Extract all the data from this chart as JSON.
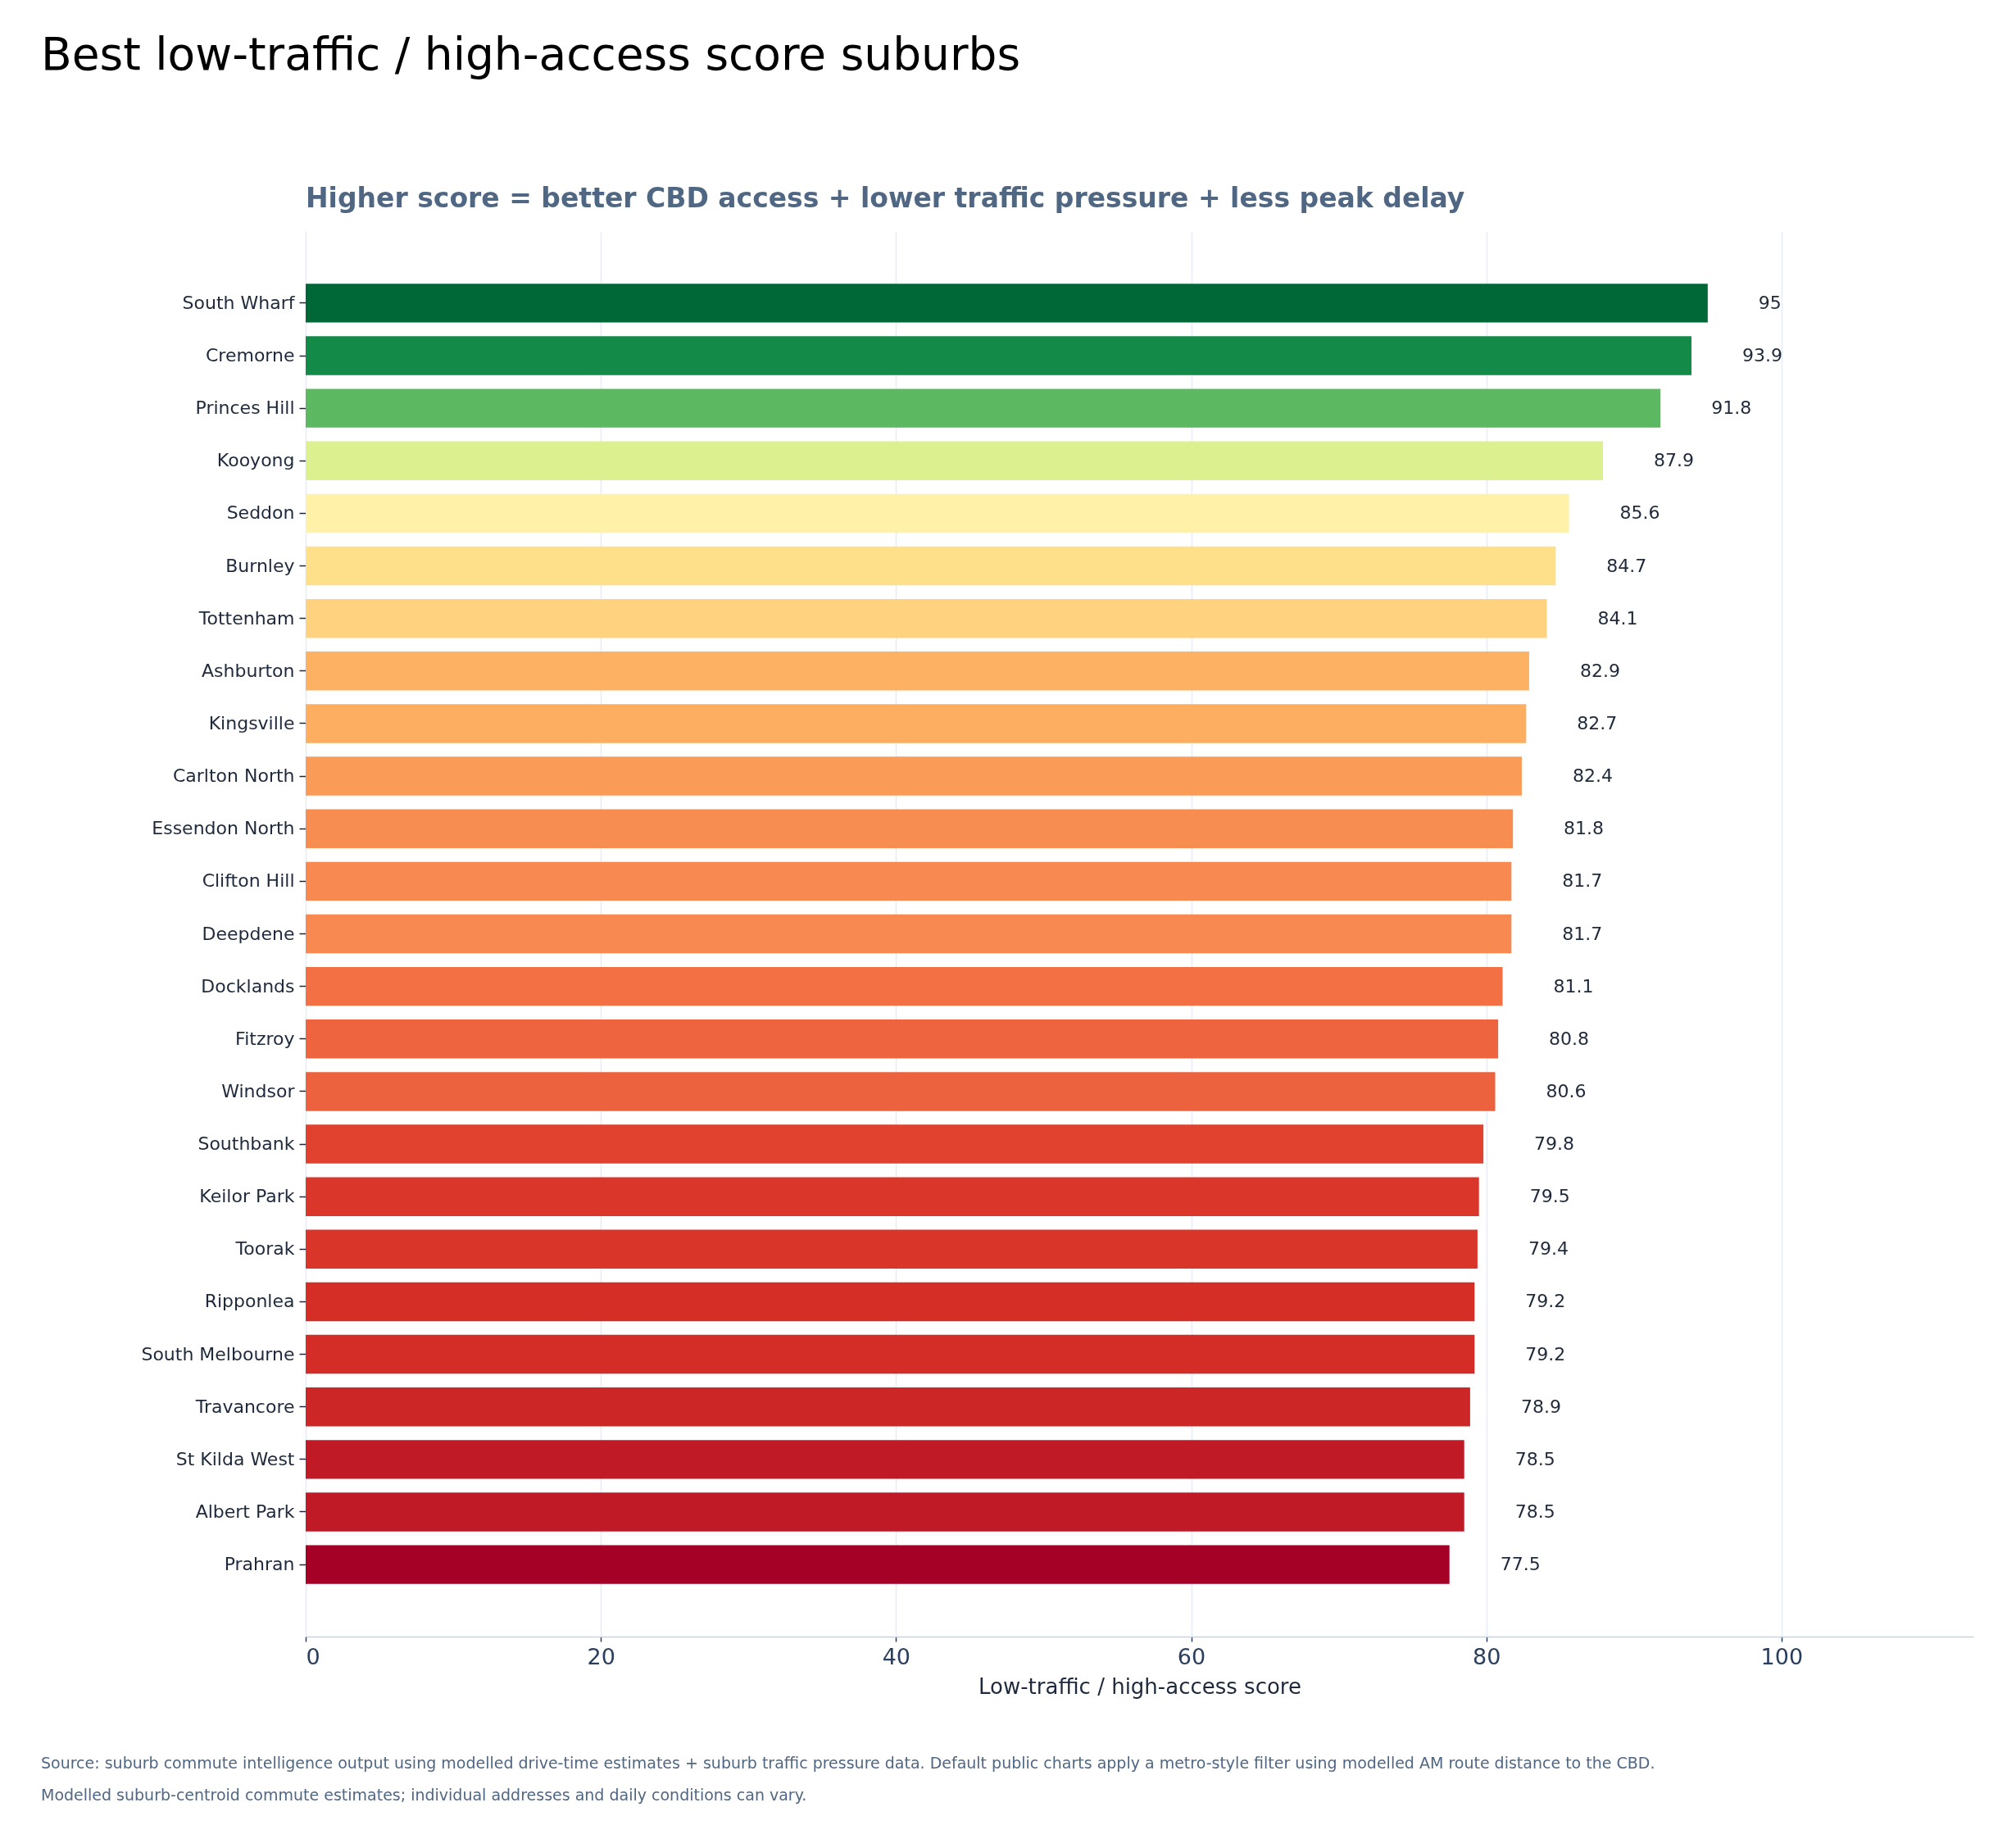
{
  "chart_data": {
    "type": "bar",
    "orientation": "horizontal",
    "title": "Best low-traffic / high-access score suburbs",
    "subtitle": "Higher score = better CBD access + lower traffic pressure + less peak delay",
    "xlabel": "Low-traffic / high-access score",
    "categories": [
      "South Wharf",
      "Cremorne",
      "Princes Hill",
      "Kooyong",
      "Seddon",
      "Burnley",
      "Tottenham",
      "Ashburton",
      "Kingsville",
      "Carlton North",
      "Essendon North",
      "Clifton Hill",
      "Deepdene",
      "Docklands",
      "Fitzroy",
      "Windsor",
      "Southbank",
      "Keilor Park",
      "Toorak",
      "Ripponlea",
      "South Melbourne",
      "Travancore",
      "St Kilda West",
      "Albert Park",
      "Prahran"
    ],
    "values": [
      95,
      93.9,
      91.8,
      87.9,
      85.6,
      84.7,
      84.1,
      82.9,
      82.7,
      82.4,
      81.8,
      81.7,
      81.7,
      81.1,
      80.8,
      80.6,
      79.8,
      79.5,
      79.4,
      79.2,
      79.2,
      78.9,
      78.5,
      78.5,
      77.5
    ],
    "colors": [
      "#006837",
      "#148a49",
      "#5db961",
      "#dcf08f",
      "#fff1a8",
      "#fee08b",
      "#fed27f",
      "#fdb163",
      "#fdae61",
      "#fa9b58",
      "#f88d52",
      "#f88a51",
      "#f88a51",
      "#f36f44",
      "#ee643f",
      "#ec613e",
      "#e0422f",
      "#da362a",
      "#d93529",
      "#d52e27",
      "#d42d27",
      "#cc2627",
      "#c01a27",
      "#c01a27",
      "#a50026"
    ],
    "xlim": [
      0,
      113
    ],
    "xticks": [
      0,
      20,
      40,
      60,
      80,
      100
    ],
    "grid": "x",
    "data_labels": true,
    "annotations": [
      "Source: suburb commute intelligence output using modelled drive-time estimates + suburb traffic pressure data. Default public charts apply a metro-style filter using modelled AM route distance to the CBD.",
      "Modelled suburb-centroid commute estimates; individual addresses and daily conditions can vary."
    ]
  }
}
